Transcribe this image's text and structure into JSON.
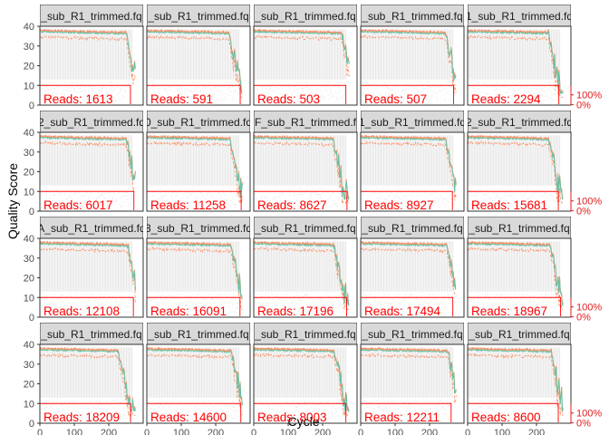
{
  "chart_data": {
    "type": "line",
    "xlabel": "Cycle",
    "ylabel": "Quality Score",
    "xlim": [
      0,
      300
    ],
    "ylim": [
      0,
      40
    ],
    "x_ticks": [
      "0",
      "100",
      "200"
    ],
    "x_tick_values": [
      0,
      100,
      200
    ],
    "y_ticks": [
      "0",
      "10",
      "20",
      "30",
      "40"
    ],
    "y_tick_values": [
      0,
      10,
      20,
      30,
      40
    ],
    "right_axis_ticks": [
      "100%",
      "0%"
    ],
    "grid": false,
    "reads_prefix": "Reads: ",
    "colors": {
      "mean_line": "#66c2a5",
      "quartile_line": "#fc8d62",
      "median_line": "#fc8d62",
      "cum_line": "#ff0000",
      "heat": "#e8e8e8",
      "strip_fill": "#d9d9d9",
      "axis_text": "#4d4d4d",
      "right_axis": "#e41a1c"
    },
    "panels": [
      {
        "strip": "_sub_R1_trimmed.fq",
        "reads": "1613"
      },
      {
        "strip": "_sub_R1_trimmed.fq",
        "reads": "591"
      },
      {
        "strip": "_sub_R1_trimmed.fq",
        "reads": "503"
      },
      {
        "strip": "_sub_R1_trimmed.fq",
        "reads": "507"
      },
      {
        "strip": "1_sub_R1_trimmed.fq",
        "reads": "2294"
      },
      {
        "strip": "2_sub_R1_trimmed.fq",
        "reads": "6017"
      },
      {
        "strip": "0_sub_R1_trimmed.fq",
        "reads": "11258"
      },
      {
        "strip": "3F_sub_R1_trimmed.fq",
        "reads": "8627"
      },
      {
        "strip": "1_sub_R1_trimmed.fq",
        "reads": "8927"
      },
      {
        "strip": "2_sub_R1_trimmed.fq",
        "reads": "15681"
      },
      {
        "strip": "A_sub_R1_trimmed.fq",
        "reads": "12108"
      },
      {
        "strip": "3_sub_R1_trimmed.fq",
        "reads": "16091"
      },
      {
        "strip": "_sub_R1_trimmed.fq",
        "reads": "17196"
      },
      {
        "strip": "_sub_R1_trimmed.fq",
        "reads": "17494"
      },
      {
        "strip": "_sub_R1_trimmed.fq",
        "reads": "18967"
      },
      {
        "strip": "_sub_R1_trimmed.fq",
        "reads": "18209"
      },
      {
        "strip": "_sub_R1_trimmed.fq",
        "reads": "14600"
      },
      {
        "strip": "_sub_R1_trimmed.fq",
        "reads": "8003"
      },
      {
        "strip": "_sub_R1_trimmed.fq",
        "reads": "12211"
      },
      {
        "strip": "_sub_R1_trimmed.fq",
        "reads": "8600"
      }
    ]
  }
}
